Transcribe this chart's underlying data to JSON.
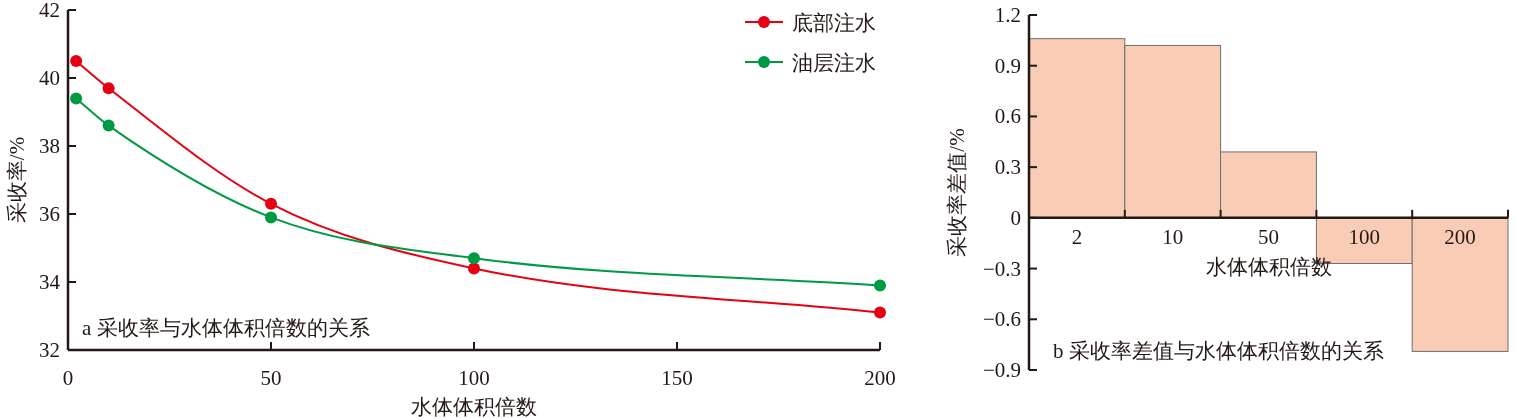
{
  "chart_data": [
    {
      "type": "line",
      "x": [
        2,
        10,
        50,
        100,
        200
      ],
      "xlabel": "水体体积倍数",
      "ylabel": "采收率/%",
      "xlim": [
        0,
        200
      ],
      "ylim": [
        32,
        42
      ],
      "xticks": [
        0,
        50,
        100,
        150,
        200
      ],
      "yticks": [
        32,
        34,
        36,
        38,
        40,
        42
      ],
      "legend": "top right",
      "marker": "circle",
      "series": [
        {
          "name": "底部注水",
          "color": "#e60012",
          "values": [
            40.5,
            39.7,
            36.3,
            34.4,
            33.1
          ]
        },
        {
          "name": "油层注水",
          "color": "#009944",
          "values": [
            39.4,
            38.6,
            35.9,
            34.7,
            33.9
          ]
        }
      ],
      "annotations": [
        "a 采收率与水体体积倍数的关系"
      ]
    },
    {
      "type": "bar",
      "categories": [
        "2",
        "10",
        "50",
        "100",
        "200"
      ],
      "values": [
        1.06,
        1.02,
        0.39,
        -0.27,
        -0.79
      ],
      "color": "#f9cdb5",
      "xlabel": "水体体积倍数",
      "ylabel": "采收率差值/%",
      "ylim": [
        -0.9,
        1.2
      ],
      "yticks": [
        {
          "value": -0.9,
          "label": "−0.9"
        },
        {
          "value": -0.6,
          "label": "−0.6"
        },
        {
          "value": -0.3,
          "label": "−0.3"
        },
        0,
        0.3,
        0.6,
        0.9,
        1.2
      ],
      "annotations": [
        "b 采收率差值与水体体积倍数的关系"
      ]
    }
  ]
}
